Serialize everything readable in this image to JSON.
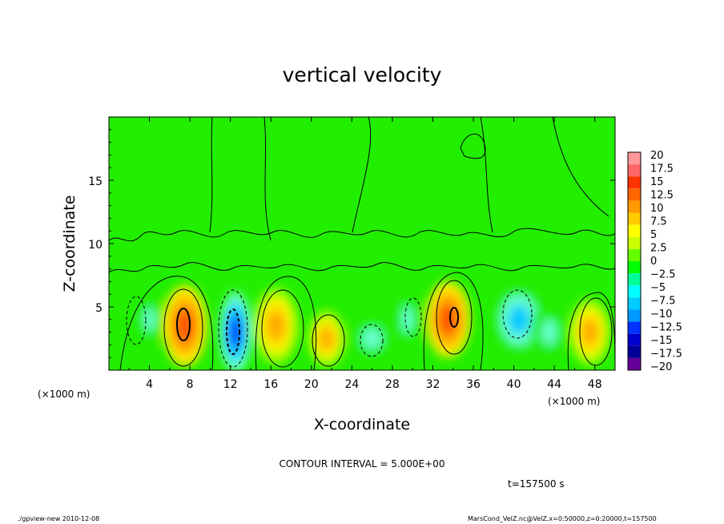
{
  "chart_data": {
    "type": "heatmap",
    "title": "vertical velocity",
    "xlabel": "X-coordinate",
    "ylabel": "Z-coordinate",
    "x_unit_label": "(×1000 m)",
    "x_unit_label_bottom": "(×1000 m)",
    "x_ticks": [
      "4",
      "8",
      "12",
      "16",
      "20",
      "24",
      "28",
      "32",
      "36",
      "40",
      "44",
      "48"
    ],
    "y_ticks": [
      "5",
      "10",
      "15"
    ],
    "xlim": [
      0,
      50
    ],
    "ylim": [
      0,
      20
    ],
    "contour_interval_text": "CONTOUR INTERVAL = 5.000E+00",
    "time_text": "t=157500 s",
    "colorbar": {
      "labels": [
        "20",
        "17.5",
        "15",
        "12.5",
        "10",
        "7.5",
        "5",
        "2.5",
        "0",
        "−2.5",
        "−5",
        "−7.5",
        "−10",
        "−12.5",
        "−15",
        "−17.5",
        "−20"
      ],
      "colors": [
        "#ff9999",
        "#ff6666",
        "#ff3300",
        "#ff6600",
        "#ff9900",
        "#ffcc00",
        "#ffff00",
        "#ccff00",
        "#66ff00",
        "#00ff00",
        "#00ff99",
        "#00ffff",
        "#00ccff",
        "#0099ff",
        "#0033ff",
        "#0000cc",
        "#000099",
        "#660099"
      ]
    },
    "cells": [
      {
        "x": 7.5,
        "z": 3.5,
        "rx": 2.2,
        "rz": 3.2,
        "v": 12
      },
      {
        "x": 12.5,
        "z": 3.0,
        "rx": 1.6,
        "rz": 3.2,
        "v": -14
      },
      {
        "x": 16.5,
        "z": 3.5,
        "rx": 2.2,
        "rz": 3.0,
        "v": 7
      },
      {
        "x": 21.5,
        "z": 2.5,
        "rx": 1.8,
        "rz": 2.2,
        "v": 7
      },
      {
        "x": 26.0,
        "z": 2.5,
        "rx": 2.4,
        "rz": 2.0,
        "v": -3
      },
      {
        "x": 29.5,
        "z": 4.0,
        "rx": 1.4,
        "rz": 2.5,
        "v": -3
      },
      {
        "x": 33.5,
        "z": 4.0,
        "rx": 2.2,
        "rz": 3.0,
        "v": 11
      },
      {
        "x": 40.5,
        "z": 4.0,
        "rx": 2.6,
        "rz": 2.8,
        "v": -7
      },
      {
        "x": 43.5,
        "z": 3.0,
        "rx": 1.8,
        "rz": 2.4,
        "v": -4
      },
      {
        "x": 47.5,
        "z": 3.0,
        "rx": 2.0,
        "rz": 2.6,
        "v": 8
      },
      {
        "x": 4.0,
        "z": 4.0,
        "rx": 1.4,
        "rz": 2.2,
        "v": -4
      }
    ]
  },
  "footer": {
    "left": "./gpview-new  2010-12-08",
    "right": "MarsCond_VelZ.nc@VelZ,x=0:50000,z=0:20000,t=157500"
  }
}
